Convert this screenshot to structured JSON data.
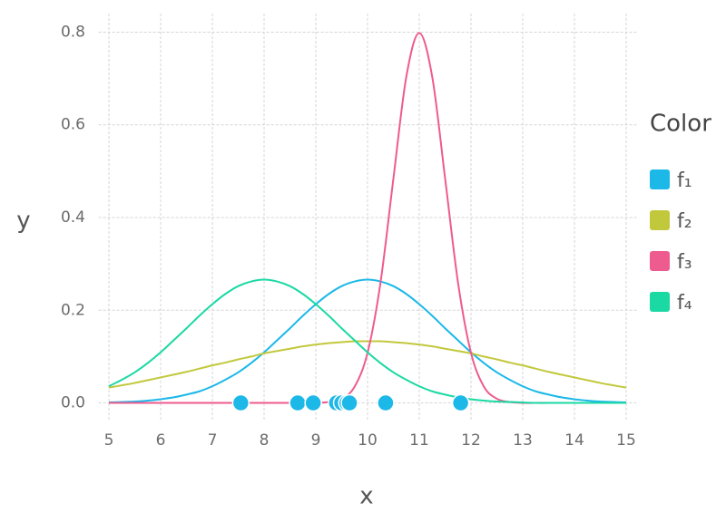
{
  "chart_data": {
    "type": "line",
    "x_label": "x",
    "y_label": "y",
    "legend_title": "Color",
    "legend": "right",
    "grid": true,
    "xlim": [
      4.8,
      15.2
    ],
    "ylim": [
      -0.04,
      0.84
    ],
    "xticks": [
      5,
      6,
      7,
      8,
      9,
      10,
      11,
      12,
      13,
      14,
      15
    ],
    "yticks": [
      {
        "value": 0,
        "label": "0.0"
      },
      0.2,
      0.4,
      0.6,
      0.8
    ],
    "x": [
      5,
      5.25,
      5.5,
      5.75,
      6,
      6.25,
      6.5,
      6.75,
      7,
      7.25,
      7.5,
      7.75,
      8,
      8.25,
      8.5,
      8.75,
      9,
      9.25,
      9.5,
      9.75,
      10,
      10.25,
      10.5,
      10.75,
      11,
      11.25,
      11.5,
      11.75,
      12,
      12.25,
      12.5,
      12.75,
      13,
      13.25,
      13.5,
      13.75,
      14,
      14.25,
      14.5,
      14.75,
      15
    ],
    "series": [
      {
        "name": "f₁",
        "color": "#1cb8e8",
        "values": [
          0.001,
          0.002,
          0.003,
          0.005,
          0.008,
          0.012,
          0.018,
          0.025,
          0.036,
          0.05,
          0.066,
          0.086,
          0.109,
          0.135,
          0.161,
          0.188,
          0.213,
          0.235,
          0.252,
          0.262,
          0.266,
          0.262,
          0.252,
          0.235,
          0.213,
          0.188,
          0.161,
          0.135,
          0.109,
          0.086,
          0.066,
          0.05,
          0.036,
          0.025,
          0.018,
          0.012,
          0.008,
          0.005,
          0.003,
          0.002,
          0.001
        ]
      },
      {
        "name": "f₂",
        "color": "#c2c83c",
        "values": [
          0.033,
          0.038,
          0.043,
          0.049,
          0.055,
          0.061,
          0.067,
          0.074,
          0.081,
          0.087,
          0.094,
          0.1,
          0.107,
          0.112,
          0.117,
          0.122,
          0.126,
          0.129,
          0.131,
          0.133,
          0.133,
          0.133,
          0.131,
          0.129,
          0.126,
          0.122,
          0.117,
          0.112,
          0.107,
          0.1,
          0.094,
          0.087,
          0.081,
          0.074,
          0.067,
          0.061,
          0.055,
          0.049,
          0.043,
          0.038,
          0.033
        ]
      },
      {
        "name": "f₃",
        "color": "#ee5b8e",
        "values": [
          0,
          0,
          0,
          0,
          0,
          0,
          0,
          0,
          0,
          0,
          0,
          0,
          0,
          0,
          0,
          0,
          0,
          0.002,
          0.009,
          0.035,
          0.108,
          0.259,
          0.484,
          0.704,
          0.798,
          0.704,
          0.484,
          0.259,
          0.108,
          0.035,
          0.009,
          0.002,
          0,
          0,
          0,
          0,
          0,
          0,
          0,
          0,
          0
        ]
      },
      {
        "name": "f₄",
        "color": "#1ad9a3",
        "values": [
          0.036,
          0.05,
          0.066,
          0.086,
          0.109,
          0.135,
          0.161,
          0.188,
          0.213,
          0.235,
          0.252,
          0.262,
          0.266,
          0.262,
          0.252,
          0.235,
          0.213,
          0.188,
          0.161,
          0.135,
          0.109,
          0.086,
          0.066,
          0.05,
          0.036,
          0.025,
          0.018,
          0.012,
          0.008,
          0.005,
          0.003,
          0.002,
          0.001,
          0,
          0,
          0,
          0,
          0,
          0,
          0,
          0
        ]
      }
    ],
    "points": {
      "x": [
        7.55,
        8.65,
        8.95,
        9.4,
        9.5,
        9.6,
        9.65,
        10.35,
        11.8
      ],
      "y": [
        0,
        0,
        0,
        0,
        0,
        0,
        0,
        0,
        0
      ]
    }
  }
}
